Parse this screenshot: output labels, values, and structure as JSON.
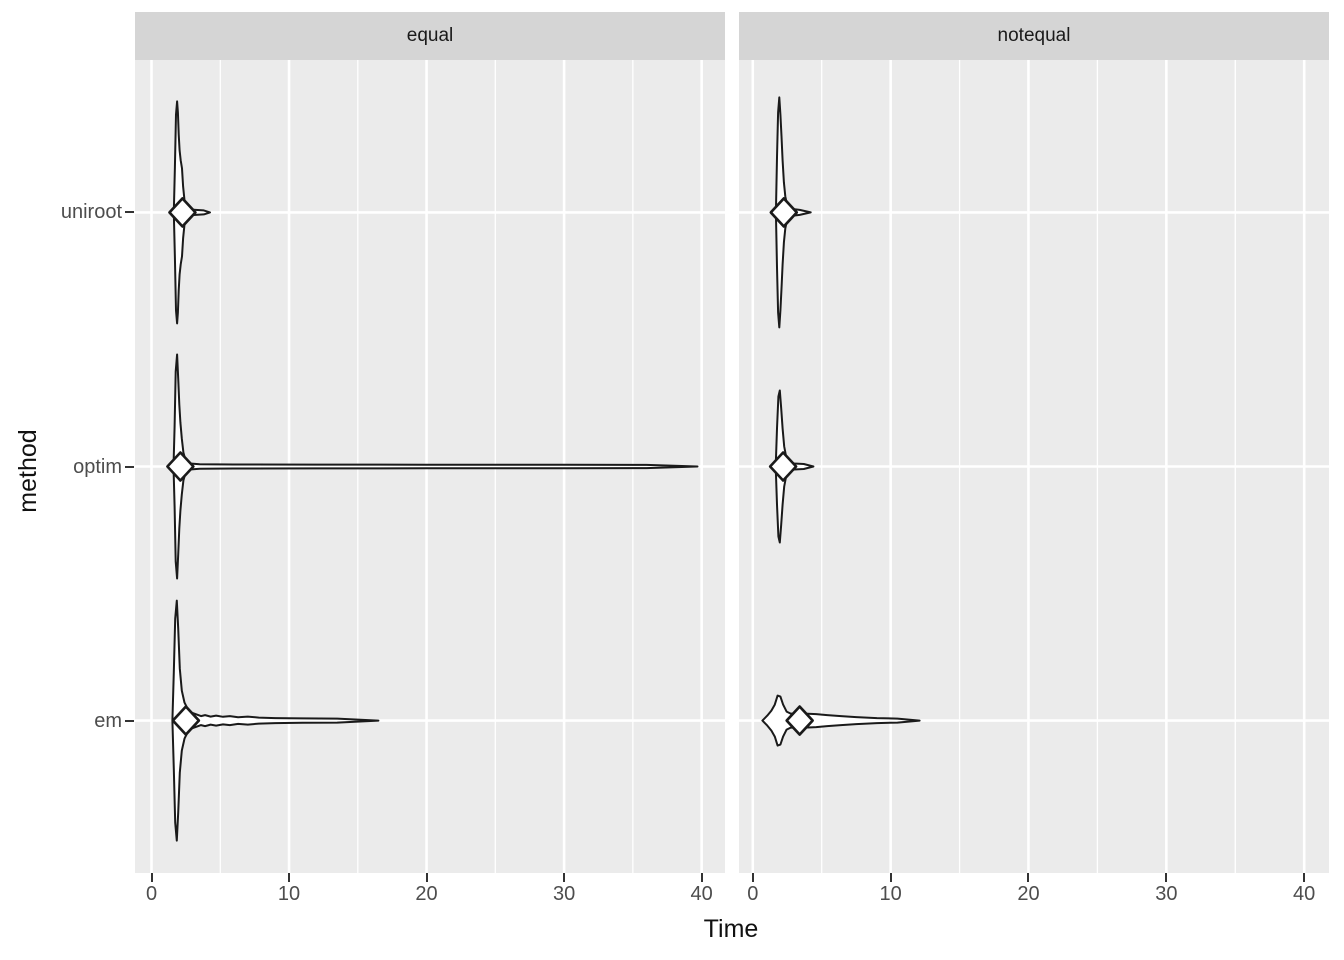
{
  "figure": {
    "x_axis_title": "Time",
    "y_axis_title": "method"
  },
  "chart_data": {
    "type": "violin",
    "orientation": "horizontal",
    "title": "",
    "xlabel": "Time",
    "ylabel": "method",
    "categories_top_to_bottom": [
      "uniroot",
      "optim",
      "em"
    ],
    "row_fractions": [
      0.1875,
      0.5,
      0.8125
    ],
    "xticks": [
      0,
      10,
      20,
      30,
      40
    ],
    "xminor": [
      5,
      15,
      25,
      35
    ],
    "grid": "on",
    "legend": "none",
    "colors": {
      "panel_bg": "#EBEBEB",
      "strip_bg": "#D5D5D5",
      "gridline": "#FFFFFF",
      "violin_stroke": "#1A1A1A",
      "violin_fill": "#FFFFFF",
      "axis_text": "#4D4D4D",
      "title_text": "#111111",
      "tick_mark": "#333333"
    },
    "facets": [
      {
        "label": "equal",
        "xlim": [
          -1.2,
          41.7
        ],
        "violins": [
          {
            "method": "uniroot",
            "mean": 2.25,
            "max_time": 4.25,
            "profile": [
              [
                1.62,
                0
              ],
              [
                1.7,
                45
              ],
              [
                1.78,
                98
              ],
              [
                1.86,
                111
              ],
              [
                1.92,
                100
              ],
              [
                1.98,
                78
              ],
              [
                2.04,
                62
              ],
              [
                2.12,
                52
              ],
              [
                2.22,
                44
              ],
              [
                2.3,
                26
              ],
              [
                2.4,
                12
              ],
              [
                2.52,
                6
              ],
              [
                2.75,
                3
              ],
              [
                3.2,
                2.5
              ],
              [
                3.8,
                2
              ],
              [
                4.25,
                0
              ]
            ]
          },
          {
            "method": "optim",
            "mean": 2.1,
            "max_time": 39.7,
            "profile": [
              [
                1.6,
                0
              ],
              [
                1.68,
                40
              ],
              [
                1.76,
                95
              ],
              [
                1.86,
                112
              ],
              [
                1.94,
                88
              ],
              [
                2.02,
                62
              ],
              [
                2.1,
                44
              ],
              [
                2.2,
                28
              ],
              [
                2.32,
                14
              ],
              [
                2.48,
                6
              ],
              [
                2.8,
                3
              ],
              [
                3.5,
                2.2
              ],
              [
                6.0,
                2
              ],
              [
                12.0,
                1.9
              ],
              [
                20.0,
                1.8
              ],
              [
                30.0,
                1.7
              ],
              [
                36.0,
                1.6
              ],
              [
                39.7,
                0
              ]
            ]
          },
          {
            "method": "em",
            "mean": 2.5,
            "max_time": 16.5,
            "profile": [
              [
                1.52,
                0
              ],
              [
                1.62,
                48
              ],
              [
                1.72,
                102
              ],
              [
                1.84,
                120
              ],
              [
                1.94,
                92
              ],
              [
                2.06,
                52
              ],
              [
                2.2,
                30
              ],
              [
                2.4,
                18
              ],
              [
                2.62,
                12
              ],
              [
                2.9,
                8
              ],
              [
                3.3,
                6
              ],
              [
                3.6,
                4.5
              ],
              [
                3.9,
                5.5
              ],
              [
                4.3,
                4
              ],
              [
                4.7,
                5
              ],
              [
                5.2,
                3.8
              ],
              [
                5.7,
                4.5
              ],
              [
                6.3,
                3.3
              ],
              [
                7.0,
                4
              ],
              [
                7.8,
                3
              ],
              [
                9.0,
                2.5
              ],
              [
                11.0,
                2.2
              ],
              [
                13.5,
                2
              ],
              [
                16.5,
                0
              ]
            ]
          }
        ]
      },
      {
        "label": "notequal",
        "xlim": [
          -1.0,
          41.8
        ],
        "violins": [
          {
            "method": "uniroot",
            "mean": 2.25,
            "max_time": 4.2,
            "profile": [
              [
                1.68,
                0
              ],
              [
                1.76,
                55
              ],
              [
                1.84,
                100
              ],
              [
                1.92,
                115
              ],
              [
                2.0,
                98
              ],
              [
                2.08,
                76
              ],
              [
                2.16,
                52
              ],
              [
                2.26,
                30
              ],
              [
                2.36,
                16
              ],
              [
                2.5,
                7
              ],
              [
                2.8,
                3.5
              ],
              [
                3.4,
                2.5
              ],
              [
                4.2,
                0
              ]
            ]
          },
          {
            "method": "optim",
            "mean": 2.2,
            "max_time": 4.4,
            "profile": [
              [
                1.66,
                0
              ],
              [
                1.76,
                38
              ],
              [
                1.86,
                70
              ],
              [
                1.96,
                76
              ],
              [
                2.06,
                58
              ],
              [
                2.16,
                38
              ],
              [
                2.28,
                20
              ],
              [
                2.42,
                10
              ],
              [
                2.6,
                5
              ],
              [
                3.0,
                3
              ],
              [
                3.7,
                2.5
              ],
              [
                4.4,
                0
              ]
            ]
          },
          {
            "method": "em",
            "mean": 3.4,
            "max_time": 12.1,
            "profile": [
              [
                0.7,
                0
              ],
              [
                1.05,
                5
              ],
              [
                1.35,
                10
              ],
              [
                1.6,
                16
              ],
              [
                1.8,
                25
              ],
              [
                2.0,
                24
              ],
              [
                2.2,
                16
              ],
              [
                2.45,
                9
              ],
              [
                2.75,
                7
              ],
              [
                3.2,
                7
              ],
              [
                3.8,
                7
              ],
              [
                4.6,
                6.5
              ],
              [
                5.4,
                5.5
              ],
              [
                6.4,
                4.5
              ],
              [
                7.5,
                3.5
              ],
              [
                9.0,
                2.5
              ],
              [
                10.5,
                2
              ],
              [
                12.1,
                0
              ]
            ]
          }
        ]
      }
    ]
  }
}
